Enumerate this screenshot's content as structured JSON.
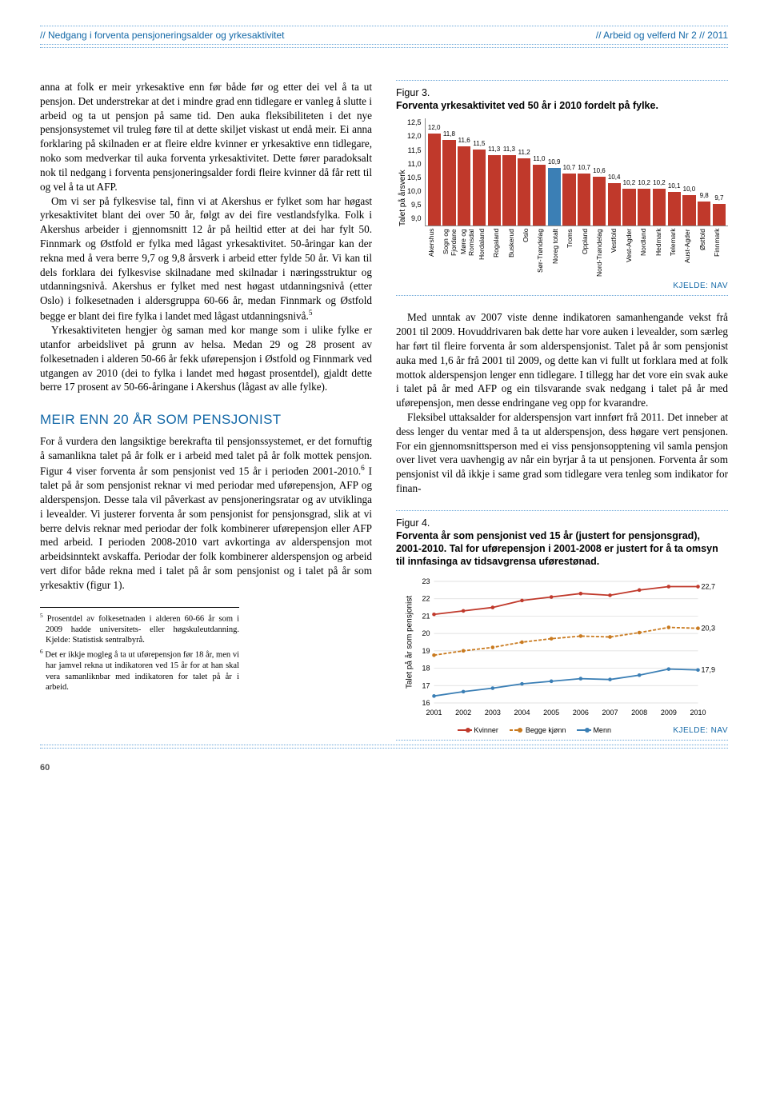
{
  "header": {
    "left": "// Nedgang i forventa pensjoneringsalder og yrkesaktivitet",
    "right": "// Arbeid og velferd Nr 2 // 2011"
  },
  "left_col": {
    "p1": "anna at folk er meir yrkesaktive enn før både før og etter dei vel å ta ut pensjon. Det understrekar at det i mindre grad enn tidlegare er vanleg å slutte i arbeid og ta ut pensjon på same tid. Den auka fleksibiliteten i det nye pensjonsystemet vil truleg føre til at dette skiljet viskast ut endå meir. Ei anna forklaring på skilnaden er at fleire eldre kvinner er yrkesaktive enn tidlegare, noko som medverkar til auka forventa yrkesaktivitet. Dette fører paradoksalt nok til nedgang i forventa pensjoneringsalder fordi fleire kvinner då får rett til og vel å ta ut AFP.",
    "p2_a": "Om vi ser på fylkesvise tal, finn vi at Akershus er fylket som har høgast yrkesaktivitet blant dei over 50 år, følgt av dei fire vestlandsfylka. Folk i Akershus arbeider i gjennomsnitt 12 år på heiltid etter at dei har fylt 50. Finnmark og Østfold er fylka med lågast yrkesaktivitet. 50-åringar kan der rekna med å vera berre 9,7 og 9,8 årsverk i arbeid etter fylde 50 år. Vi kan til dels forklara dei fylkesvise skilnadane med skilnadar i næringsstruktur og utdanningsnivå. Akershus er fylket med nest høgast utdanningsnivå (etter Oslo) i folkesetnaden i aldersgruppa 60-66 år, medan Finnmark og Østfold begge er blant dei fire fylka i landet med lågast utdanningsnivå.",
    "p2_b": "",
    "p3": "Yrkesaktiviteten hengjer òg saman med kor mange som i ulike fylke er utanfor arbeidslivet på grunn av helsa. Medan 29 og 28 prosent av folkesetnaden i alderen 50-66 år fekk uførepensjon i Østfold og Finnmark ved utgangen av 2010 (dei to fylka i landet med høgast prosentdel), gjaldt dette berre 17 prosent av 50-66-åringane i Akershus (lågast av alle fylke).",
    "h2": "MEIR ENN 20 ÅR SOM PENSJONIST",
    "p4_a": "For å vurdera den langsiktige berekrafta til pensjonssystemet, er det fornuftig å samanlikna talet på år folk er i arbeid med talet på år folk mottek pensjon. Figur 4 viser forventa år som pensjonist ved 15 år i perioden 2001-2010.",
    "p4_b": " I talet på år som pensjonist reknar vi med periodar med uførepensjon, AFP og alderspensjon. Desse tala vil påverkast av pensjoneringsratar og av utviklinga i levealder. Vi justerer forventa år som pensjonist for pensjonsgrad, slik at vi berre delvis reknar med periodar der folk kombinerer uførepensjon eller AFP med arbeid. I perioden 2008-2010 vart avkortinga av alderspensjon mot arbeidsinntekt avskaffa. Periodar der folk kombinerer alderspensjon og arbeid vert difor både rekna med i talet på år som pensjonist og i talet på år som yrkesaktiv (figur 1).",
    "fn5": "Prosentdel av folkesetnaden i alderen 60-66 år som i 2009 hadde universitets- eller høgskuleutdanning. Kjelde: Statistisk sentralbyrå.",
    "fn6": "Det er ikkje mogleg å ta ut uførepensjon før 18 år, men vi har jamvel rekna ut indikatoren ved 15 år for at han skal vera samanliknbar med indikatoren for talet på år i arbeid."
  },
  "right_col": {
    "p1": "Med unntak av 2007 viste denne indikatoren samanhengande vekst frå 2001 til 2009. Hovuddrivaren bak dette har vore auken i levealder, som særleg har ført til fleire forventa år som alderspensjonist. Talet på år som pensjonist auka med 1,6 år frå 2001 til 2009, og dette kan vi fullt ut forklara med at folk mottok alderspensjon lenger enn tidlegare. I tillegg har det vore ein svak auke i talet på år med AFP og ein tilsvarande svak nedgang i talet på år med uførepensjon, men desse endringane veg opp for kvarandre.",
    "p2": "Fleksibel uttaksalder for alderspensjon vart innført frå 2011. Det inneber at dess lenger du ventar med å ta ut alderspensjon, dess høgare vert pensjonen. For ein gjennomsnittsperson med ei viss pensjonsopptening vil samla pensjon over livet vera uavhengig av når ein byrjar å ta ut pensjonen. Forventa år som pensjonist vil då ikkje i same grad som tidlegare vera tenleg som indikator for finan-"
  },
  "fig3": {
    "num": "Figur 3.",
    "title": "Forventa yrkesaktivitet ved 50 år i 2010 fordelt på fylke.",
    "ylabel": "Talet på årsverk",
    "ymin": 9.0,
    "ymax": 12.5,
    "ystep": 0.5,
    "bar_color": "#c0392b",
    "alt_color": "#3b7fb5",
    "alt_index": 8,
    "bg": "#ffffff",
    "categories": [
      "Akershus",
      "Sogn og Fjordane",
      "Møre og Romsdal",
      "Hordaland",
      "Rogaland",
      "Buskerud",
      "Oslo",
      "Sør-Trøndelag",
      "Noreg totalt",
      "Troms",
      "Oppland",
      "Nord-Trøndelag",
      "Vestfold",
      "Vest-Agder",
      "Nordland",
      "Hedmark",
      "Telemark",
      "Aust-Agder",
      "Østfold",
      "Finnmark"
    ],
    "values": [
      12.0,
      11.8,
      11.6,
      11.5,
      11.3,
      11.3,
      11.2,
      11.0,
      10.9,
      10.7,
      10.7,
      10.6,
      10.4,
      10.2,
      10.2,
      10.2,
      10.1,
      10.0,
      9.8,
      9.7
    ],
    "labels": [
      "12,0",
      "11,8",
      "11,6",
      "11,5",
      "11,3",
      "11,3",
      "11,2",
      "11,0",
      "10,9",
      "10,7",
      "10,7",
      "10,6",
      "10,4",
      "10,2",
      "10,2",
      "10,2",
      "10,1",
      "10,0",
      "9,8",
      "9,7"
    ],
    "source": "KJELDE: NAV"
  },
  "fig4": {
    "num": "Figur 4.",
    "title": "Forventa år som pensjonist ved 15 år (justert for pensjonsgrad), 2001-2010. Tal for uførepensjon i 2001-2008 er justert for å ta omsyn til innfasinga av tidsavgrensa uførestønad.",
    "ylabel": "Talet på år som pensjonist",
    "ymin": 16,
    "ymax": 23,
    "ystep": 1,
    "years": [
      "2001",
      "2002",
      "2003",
      "2004",
      "2005",
      "2006",
      "2007",
      "2008",
      "2009",
      "2010"
    ],
    "series": [
      {
        "name": "Kvinner",
        "color": "#c0392b",
        "dash": "",
        "values": [
          21.1,
          21.3,
          21.5,
          21.9,
          22.1,
          22.3,
          22.2,
          22.5,
          22.7,
          22.7
        ],
        "end_label": "22,7"
      },
      {
        "name": "Begge kjønn",
        "color": "#c97a1f",
        "dash": "4 2",
        "values": [
          18.75,
          19.0,
          19.2,
          19.5,
          19.7,
          19.85,
          19.8,
          20.05,
          20.35,
          20.3
        ],
        "end_label": "20,3"
      },
      {
        "name": "Menn",
        "color": "#3b7fb5",
        "dash": "",
        "values": [
          16.4,
          16.65,
          16.85,
          17.1,
          17.25,
          17.4,
          17.35,
          17.6,
          17.95,
          17.9
        ],
        "end_label": "17,9"
      }
    ],
    "source": "KJELDE: NAV",
    "grid_color": "#d9d9d9"
  },
  "page_number": "60"
}
